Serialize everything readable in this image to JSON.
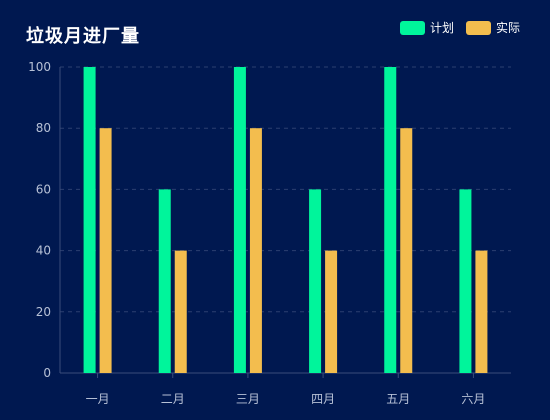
{
  "chart_data": {
    "type": "bar",
    "title": "垃圾月进厂量",
    "categories": [
      "一月",
      "二月",
      "三月",
      "四月",
      "五月",
      "六月"
    ],
    "series": [
      {
        "name": "计划",
        "values": [
          100,
          60,
          100,
          60,
          100,
          60
        ],
        "color": "#00f59b"
      },
      {
        "name": "实际",
        "values": [
          80,
          40,
          80,
          40,
          80,
          40
        ],
        "color": "#f3bd4e"
      }
    ],
    "xlabel": "",
    "ylabel": "",
    "ylim": [
      0,
      100
    ],
    "yticks": [
      0,
      20,
      40,
      60,
      80,
      100
    ],
    "grid": true,
    "legend_position": "top-right"
  },
  "colors": {
    "background": "#001850",
    "axis": "#3a4c7a",
    "grid": "#2c3f70",
    "tick_text": "#b7c1d6",
    "title": "#ffffff"
  }
}
